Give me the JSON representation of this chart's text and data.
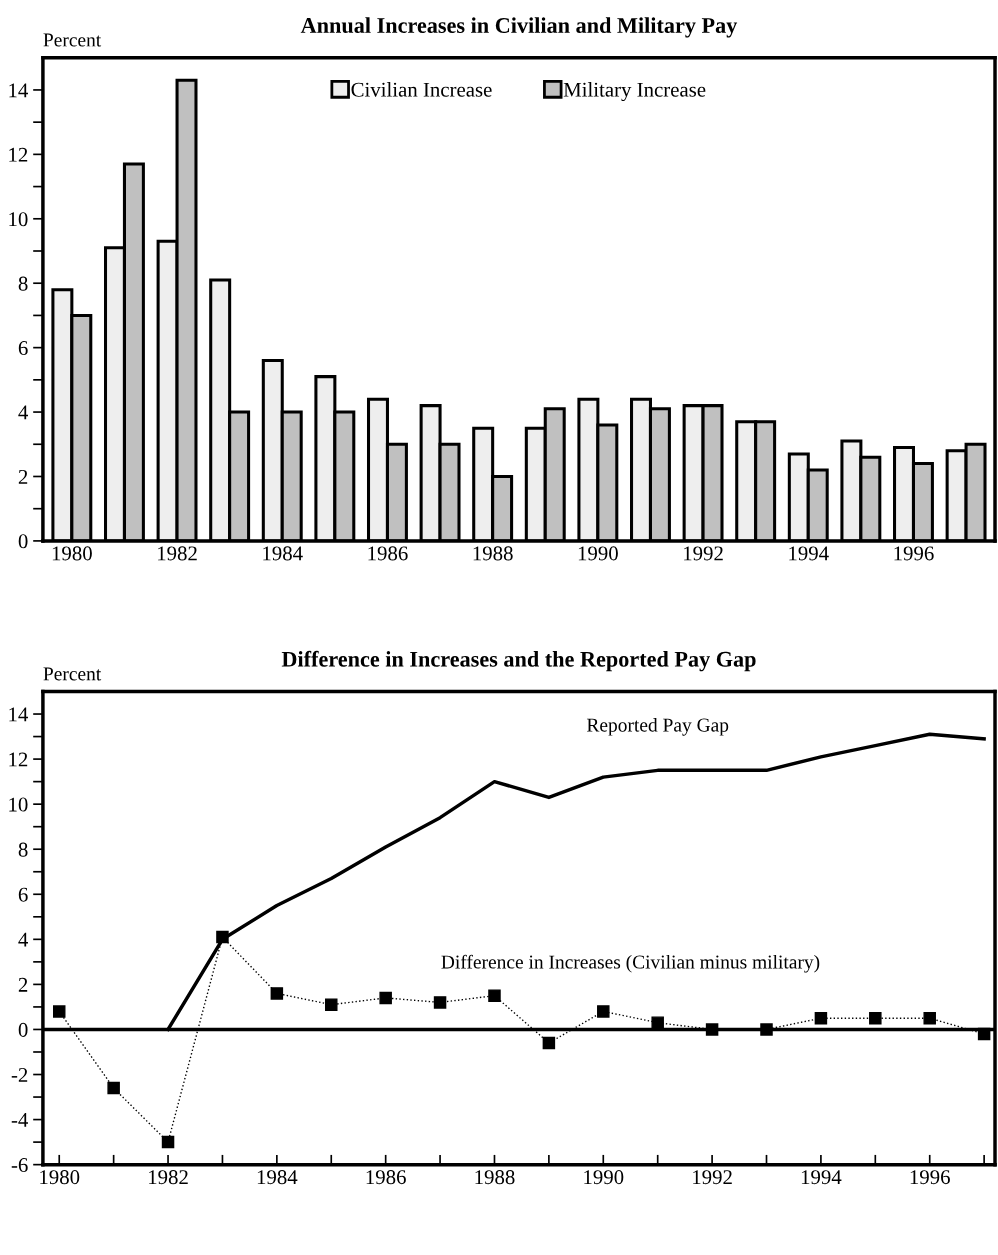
{
  "chart_data": [
    {
      "type": "bar",
      "title": "Annual Increases in Civilian and Military Pay",
      "ylabel": "Percent",
      "categories": [
        "1980",
        null,
        "1982",
        null,
        "1984",
        null,
        "1986",
        null,
        "1988",
        null,
        "1990",
        null,
        "1992",
        null,
        "1994",
        null,
        "1996",
        null
      ],
      "series": [
        {
          "name": "Civilian Increase",
          "color": "#eeeeee",
          "values": [
            7.8,
            9.1,
            9.3,
            8.1,
            5.6,
            5.1,
            4.4,
            4.2,
            3.5,
            3.5,
            4.4,
            4.4,
            4.2,
            3.7,
            2.7,
            3.1,
            2.9,
            2.8
          ]
        },
        {
          "name": "Military Increase",
          "color": "#c0c0c0",
          "values": [
            7.0,
            11.7,
            14.3,
            4.0,
            4.0,
            4.0,
            3.0,
            3.0,
            2.0,
            4.1,
            3.6,
            4.1,
            4.2,
            3.7,
            2.2,
            2.6,
            2.4,
            3.0
          ]
        }
      ],
      "ylim": [
        0,
        15
      ],
      "yticks": [
        0,
        {
          "value": 1,
          "label": null
        },
        2,
        {
          "value": 3,
          "label": null
        },
        4,
        {
          "value": 5,
          "label": null
        },
        6,
        {
          "value": 7,
          "label": null
        },
        8,
        {
          "value": 9,
          "label": null
        },
        10,
        {
          "value": 11,
          "label": null
        },
        12,
        {
          "value": 13,
          "label": null
        },
        14
      ],
      "legend": "top",
      "grid": false
    },
    {
      "type": "line",
      "title": "Difference in Increases and the Reported Pay Gap",
      "ylabel": "Percent",
      "x": [
        1980,
        1981,
        1982,
        1983,
        1984,
        1985,
        1986,
        1987,
        1988,
        1989,
        1990,
        1991,
        1992,
        1993,
        1994,
        1995,
        1996,
        1997
      ],
      "series": [
        {
          "name": "Reported Pay Gap",
          "color": "#000000",
          "line_style": "solid",
          "marker": "none",
          "values": [
            null,
            null,
            0,
            4.0,
            5.5,
            6.7,
            8.1,
            9.4,
            11.0,
            10.3,
            11.2,
            11.5,
            11.5,
            11.5,
            12.1,
            12.6,
            13.1,
            12.9
          ]
        },
        {
          "name": "Difference in Increases (Civilian minus military)",
          "color": "#000000",
          "line_style": "dotted",
          "marker": "square",
          "values": [
            0.8,
            -2.6,
            -5.0,
            4.1,
            1.6,
            1.1,
            1.4,
            1.2,
            1.5,
            -0.6,
            0.8,
            0.3,
            0,
            0,
            0.5,
            0.5,
            0.5,
            -0.2
          ]
        }
      ],
      "xlim": [
        1979.7,
        1997.2
      ],
      "xticks": [
        1980,
        {
          "value": 1981,
          "label": null
        },
        1982,
        {
          "value": 1983,
          "label": null
        },
        1984,
        {
          "value": 1985,
          "label": null
        },
        1986,
        {
          "value": 1987,
          "label": null
        },
        1988,
        {
          "value": 1989,
          "label": null
        },
        1990,
        {
          "value": 1991,
          "label": null
        },
        1992,
        {
          "value": 1993,
          "label": null
        },
        1994,
        {
          "value": 1995,
          "label": null
        },
        1996,
        {
          "value": 1997,
          "label": null
        }
      ],
      "ylim": [
        -6,
        15
      ],
      "yticks": [
        -6,
        {
          "value": -5,
          "label": null
        },
        -4,
        {
          "value": -3,
          "label": null
        },
        -2,
        {
          "value": -1,
          "label": null
        },
        0,
        {
          "value": 1,
          "label": null
        },
        2,
        {
          "value": 3,
          "label": null
        },
        4,
        {
          "value": 5,
          "label": null
        },
        6,
        {
          "value": 7,
          "label": null
        },
        8,
        {
          "value": 9,
          "label": null
        },
        10,
        {
          "value": 11,
          "label": null
        },
        12,
        {
          "value": 13,
          "label": null
        },
        14
      ],
      "ref_lines": [
        {
          "axis": "y",
          "value": 0,
          "label": null,
          "color": "#000000",
          "line_style": "solid"
        }
      ],
      "legend": false,
      "grid": false
    }
  ]
}
